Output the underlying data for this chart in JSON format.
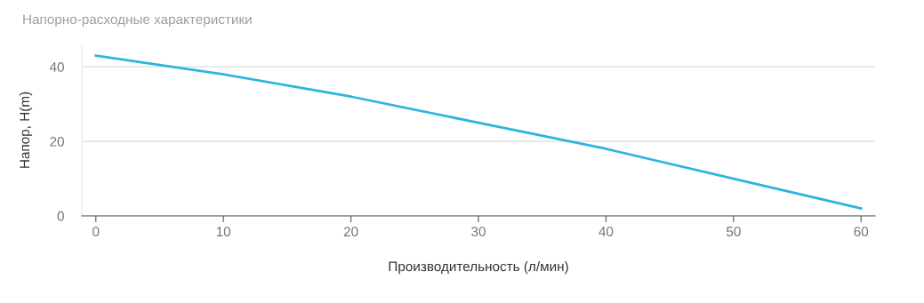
{
  "chart_data": {
    "type": "line",
    "title": "Напорно-расходные характеристики",
    "xlabel": "Производительность (л/мин)",
    "ylabel": "Напор, H(m)",
    "x": [
      0,
      10,
      20,
      30,
      40,
      50,
      60
    ],
    "series": [
      {
        "color": "#2eb5dc",
        "values": [
          43,
          38,
          32,
          25,
          18,
          10,
          2
        ]
      }
    ],
    "xlim": [
      -1.1,
      61.1
    ],
    "ylim": [
      0,
      46
    ],
    "xticks": [
      0,
      10,
      20,
      30,
      40,
      50,
      60
    ],
    "yticks": [
      0,
      20,
      40
    ],
    "grid": "y",
    "legend": false,
    "marker": "none",
    "line_style": "solid"
  }
}
